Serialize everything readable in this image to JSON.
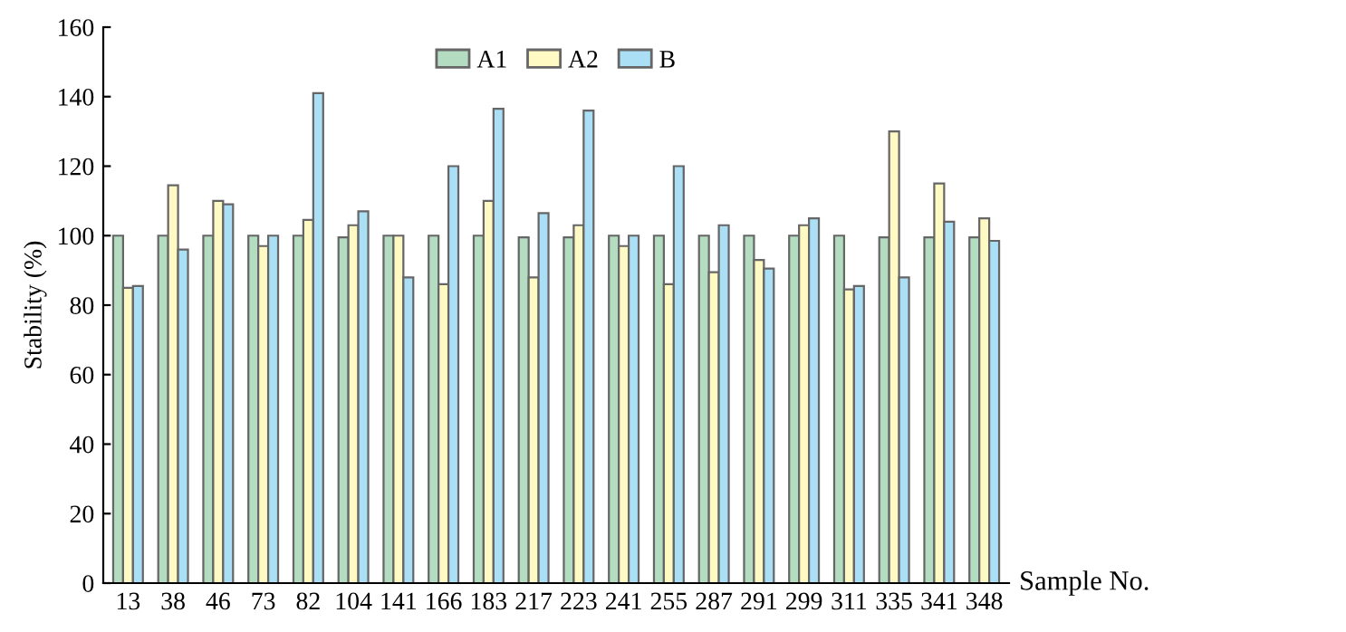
{
  "chart_data": {
    "type": "bar",
    "xlabel": "Sample No.",
    "ylabel": "Stability (%)",
    "categories": [
      "13",
      "38",
      "46",
      "73",
      "82",
      "104",
      "141",
      "166",
      "183",
      "217",
      "223",
      "241",
      "255",
      "287",
      "291",
      "299",
      "311",
      "335",
      "341",
      "348"
    ],
    "series": [
      {
        "name": "A1",
        "color": "#b3dcc0",
        "values": [
          100,
          100,
          100,
          100,
          100,
          99.5,
          100,
          100,
          100,
          99.5,
          99.5,
          100,
          100,
          100,
          100,
          100,
          100,
          99.5,
          99.5,
          99.5
        ]
      },
      {
        "name": "A2",
        "color": "#fff9c4",
        "values": [
          85,
          114.5,
          110,
          97,
          104.5,
          103,
          100,
          86,
          110,
          88,
          103,
          97,
          86,
          89.5,
          93,
          103,
          84.5,
          130,
          115,
          105
        ]
      },
      {
        "name": "B",
        "color": "#aadff5",
        "values": [
          85.5,
          96,
          109,
          100,
          141,
          107,
          88,
          120,
          136.5,
          106.5,
          136,
          100,
          120,
          103,
          90.5,
          105,
          85.5,
          88,
          104,
          98.5
        ]
      }
    ],
    "ylim": [
      0,
      160
    ],
    "yticks": [
      0,
      20,
      40,
      60,
      80,
      100,
      120,
      140,
      160
    ],
    "grid": false,
    "legend": "top"
  }
}
